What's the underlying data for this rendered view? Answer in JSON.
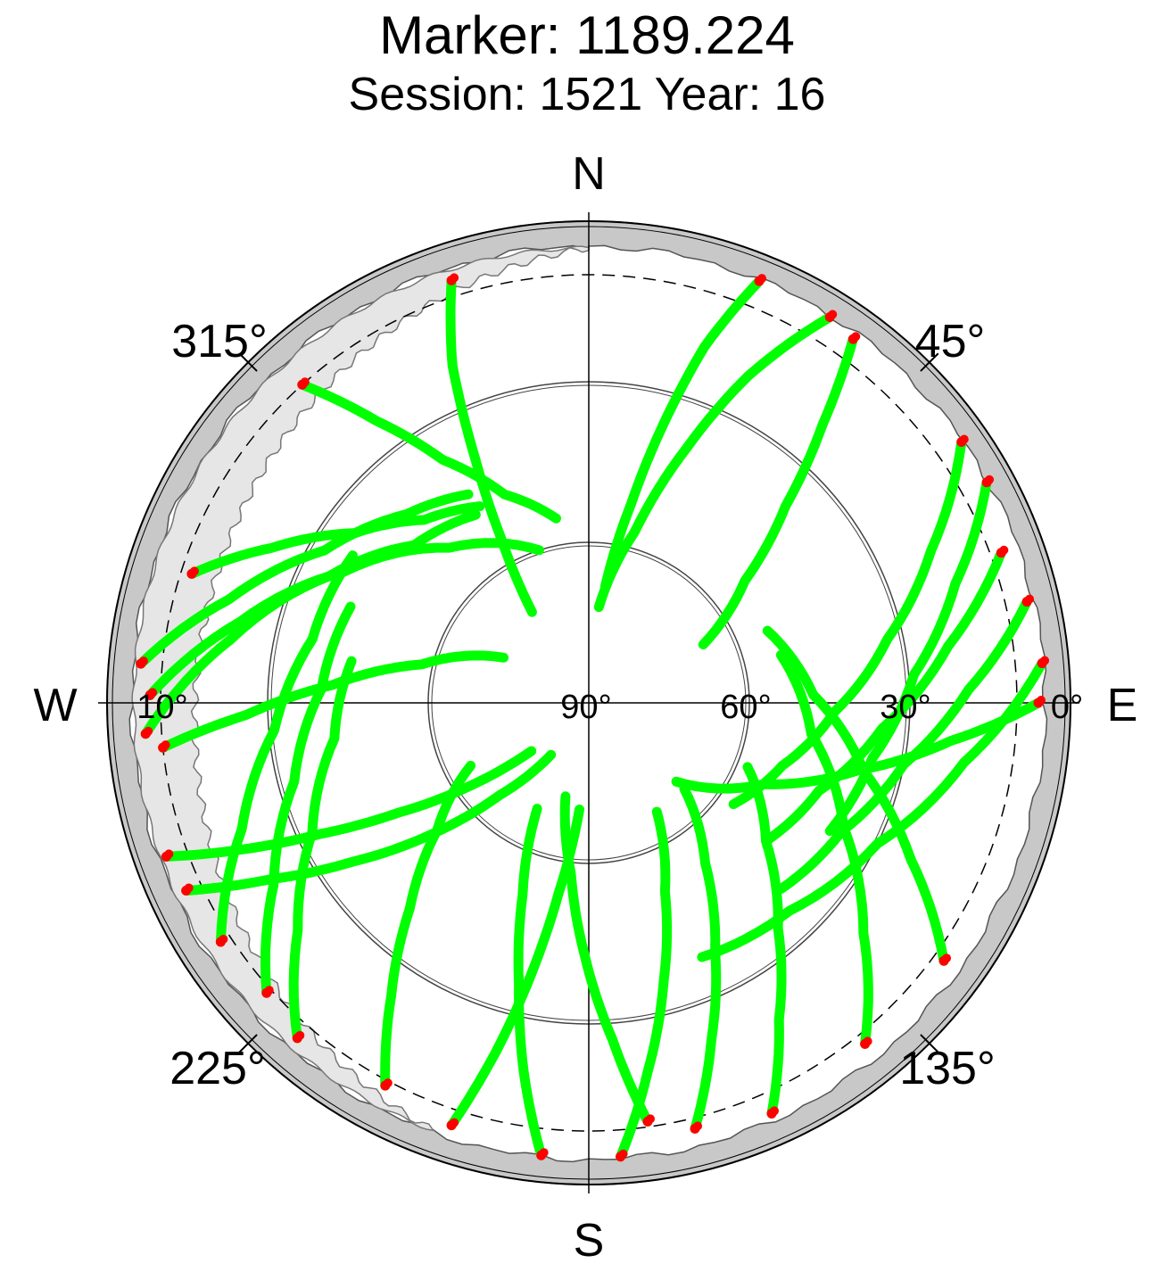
{
  "chart_data": {
    "type": "scatter",
    "projection": "polar-skyplot",
    "title": "Marker: 1189.224",
    "subtitle": "Session: 1521 Year: 16",
    "compass": {
      "north": "N",
      "east": "E",
      "south": "S",
      "west": "W"
    },
    "azimuth_ticks": [
      {
        "az": 45,
        "label": "45°"
      },
      {
        "az": 135,
        "label": "135°"
      },
      {
        "az": 225,
        "label": "225°"
      },
      {
        "az": 315,
        "label": "315°"
      }
    ],
    "elevation_ticks": [
      {
        "el": 90,
        "label": "90°"
      },
      {
        "el": 60,
        "label": "60°"
      },
      {
        "el": 30,
        "label": "30°"
      },
      {
        "el": 10,
        "label": "10°"
      },
      {
        "el": 0,
        "label": "0°"
      }
    ],
    "elevation_rings": [
      60,
      30,
      0
    ],
    "cutoff_elevation": 10,
    "grid": true,
    "colors": {
      "track": "#00ff00",
      "endpoint": "#ff0000",
      "horizon_mask": "#c8c8c8",
      "visibility_gap": "#e6e6e6"
    },
    "series": [
      {
        "values": [
          [
            -18,
            7
          ],
          [
            -22,
            22
          ],
          [
            -25,
            40
          ],
          [
            -28,
            55
          ],
          [
            -32,
            70
          ]
        ]
      },
      {
        "values": [
          [
            22,
            5
          ],
          [
            18,
            20
          ],
          [
            15,
            36
          ],
          [
            12,
            52
          ],
          [
            8,
            68
          ]
        ]
      },
      {
        "values": [
          [
            250,
            6
          ],
          [
            247,
            20
          ],
          [
            244,
            34
          ],
          [
            240,
            49
          ],
          [
            235,
            63
          ],
          [
            230,
            76
          ]
        ]
      },
      {
        "values": [
          [
            245,
            7
          ],
          [
            241,
            22
          ],
          [
            236,
            37
          ],
          [
            230,
            52
          ],
          [
            224,
            66
          ],
          [
            216,
            78
          ]
        ]
      },
      {
        "values": [
          [
            288,
            12
          ],
          [
            296,
            24
          ],
          [
            306,
            36
          ],
          [
            318,
            44
          ],
          [
            331,
            48
          ]
        ]
      },
      {
        "values": [
          [
            275,
            6
          ],
          [
            286,
            20
          ],
          [
            300,
            33
          ],
          [
            316,
            41
          ],
          [
            330,
            45
          ]
        ]
      },
      {
        "values": [
          [
            266,
            7
          ],
          [
            280,
            22
          ],
          [
            296,
            36
          ],
          [
            312,
            46
          ],
          [
            329,
            49
          ]
        ]
      },
      {
        "values": [
          [
            55,
            5
          ],
          [
            66,
            20
          ],
          [
            78,
            33
          ],
          [
            92,
            44
          ],
          [
            108,
            52
          ],
          [
            125,
            57
          ]
        ]
      },
      {
        "values": [
          [
            70,
            8
          ],
          [
            81,
            22
          ],
          [
            95,
            35
          ],
          [
            111,
            44
          ],
          [
            128,
            48
          ]
        ]
      },
      {
        "values": [
          [
            85,
            5
          ],
          [
            99,
            19
          ],
          [
            116,
            30
          ],
          [
            136,
            36
          ],
          [
            156,
            38
          ]
        ]
      },
      {
        "values": [
          [
            186,
            5
          ],
          [
            190,
            20
          ],
          [
            194,
            36
          ],
          [
            199,
            52
          ],
          [
            206,
            68
          ]
        ]
      },
      {
        "values": [
          [
            176,
            5
          ],
          [
            171,
            20
          ],
          [
            165,
            36
          ],
          [
            158,
            52
          ],
          [
            148,
            66
          ]
        ]
      },
      {
        "values": [
          [
            166,
            8
          ],
          [
            160,
            23
          ],
          [
            153,
            38
          ],
          [
            144,
            53
          ],
          [
            132,
            66
          ]
        ]
      },
      {
        "values": [
          [
            156,
            6
          ],
          [
            149,
            21
          ],
          [
            140,
            35
          ],
          [
            128,
            48
          ],
          [
            112,
            58
          ]
        ]
      },
      {
        "values": [
          [
            208,
            9
          ],
          [
            214,
            24
          ],
          [
            221,
            39
          ],
          [
            230,
            53
          ],
          [
            242,
            65
          ]
        ]
      },
      {
        "values": [
          [
            221,
            7
          ],
          [
            232,
            21
          ],
          [
            245,
            33
          ],
          [
            262,
            42
          ],
          [
            280,
            45
          ]
        ]
      },
      {
        "values": [
          [
            228,
            9
          ],
          [
            240,
            22
          ],
          [
            255,
            33
          ],
          [
            273,
            40
          ],
          [
            292,
            42
          ]
        ]
      },
      {
        "values": [
          [
            237,
            8
          ],
          [
            250,
            21
          ],
          [
            265,
            31
          ],
          [
            283,
            37
          ],
          [
            302,
            38
          ]
        ]
      },
      {
        "values": [
          [
            126,
            8
          ],
          [
            116,
            23
          ],
          [
            104,
            37
          ],
          [
            88,
            48
          ],
          [
            68,
            54
          ]
        ]
      },
      {
        "values": [
          [
            141,
            8
          ],
          [
            130,
            23
          ],
          [
            116,
            37
          ],
          [
            98,
            48
          ],
          [
            76,
            53
          ]
        ]
      },
      {
        "values": [
          [
            271,
            8
          ],
          [
            283,
            23
          ],
          [
            298,
            38
          ],
          [
            318,
            51
          ],
          [
            342,
            60
          ]
        ]
      },
      {
        "values": [
          [
            90,
            6
          ],
          [
            96,
            22
          ],
          [
            104,
            38
          ],
          [
            115,
            54
          ],
          [
            132,
            68
          ]
        ]
      },
      {
        "values": [
          [
            264,
            10
          ],
          [
            268,
            26
          ],
          [
            274,
            42
          ],
          [
            283,
            58
          ],
          [
            298,
            72
          ]
        ]
      },
      {
        "values": [
          [
            198,
            7
          ],
          [
            195,
            22
          ],
          [
            192,
            38
          ],
          [
            189,
            54
          ],
          [
            185,
            70
          ]
        ]
      },
      {
        "values": [
          [
            172,
            11
          ],
          [
            176,
            27
          ],
          [
            181,
            43
          ],
          [
            186,
            58
          ],
          [
            194,
            72
          ]
        ]
      },
      {
        "values": [
          [
            61,
            5
          ],
          [
            72,
            18
          ],
          [
            85,
            29
          ],
          [
            101,
            36
          ],
          [
            118,
            39
          ]
        ]
      },
      {
        "values": [
          [
            77,
            6
          ],
          [
            88,
            19
          ],
          [
            101,
            30
          ],
          [
            117,
            37
          ],
          [
            134,
            40
          ]
        ]
      },
      {
        "values": [
          [
            32,
            5
          ],
          [
            26,
            22
          ],
          [
            21,
            39
          ],
          [
            15,
            57
          ],
          [
            6,
            72
          ]
        ]
      },
      {
        "values": [
          [
            36,
            6
          ],
          [
            40,
            22
          ],
          [
            45,
            38
          ],
          [
            52,
            53
          ],
          [
            63,
            66
          ]
        ]
      },
      {
        "values": [
          [
            318,
            10
          ],
          [
            323,
            24
          ],
          [
            329,
            37
          ],
          [
            338,
            48
          ],
          [
            350,
            55
          ]
        ]
      }
    ]
  }
}
